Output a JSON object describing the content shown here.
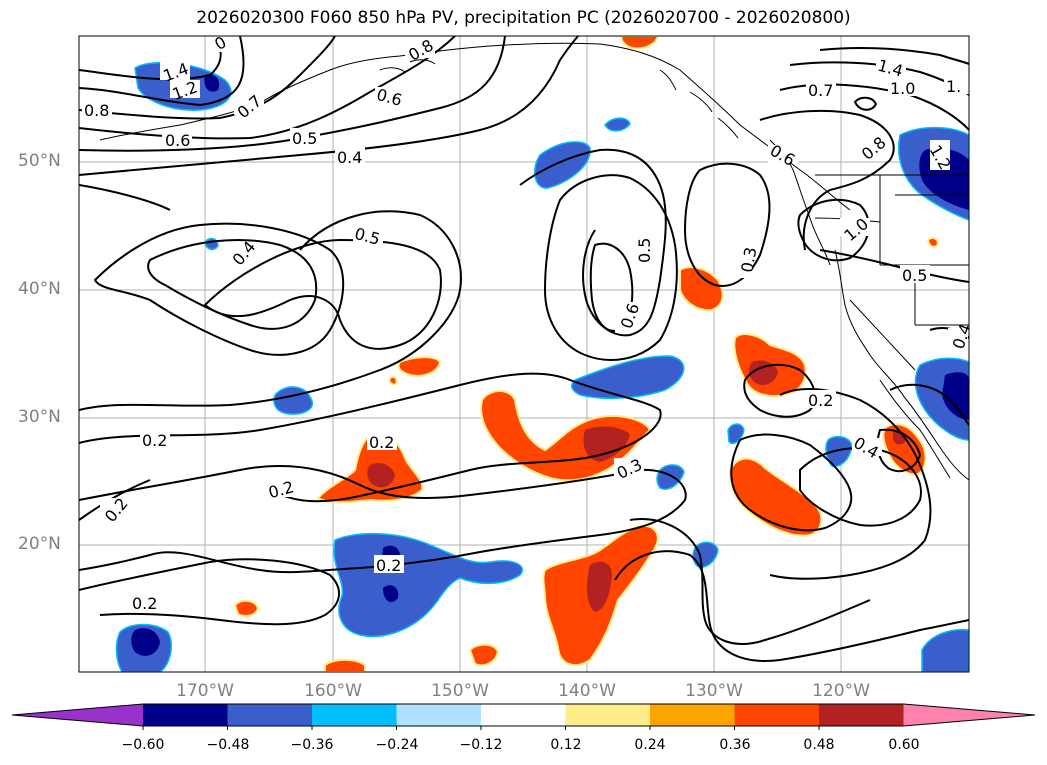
{
  "title": "2026020300 F060 850 hPa PV, precipitation PC (2026020700 - 2026020800)",
  "lat_labels": [
    "50°N",
    "40°N",
    "30°N",
    "20°N"
  ],
  "lon_labels": [
    "170°W",
    "160°W",
    "150°W",
    "140°W",
    "130°W",
    "120°W"
  ],
  "colorbar": {
    "ticks": [
      "−0.60",
      "−0.48",
      "−0.36",
      "−0.24",
      "−0.12",
      "0.12",
      "0.24",
      "0.36",
      "0.48",
      "0.60"
    ],
    "colors": [
      "#9932cc",
      "#00008b",
      "#3a5fcd",
      "#00bfff",
      "#b0e2ff",
      "#ffffff",
      "#ffec8b",
      "#ffa500",
      "#ff4500",
      "#b22222",
      "#ff82ab"
    ]
  },
  "contour_labels": {
    "l1": "1.4",
    "l2": "1.2",
    "l3": "0.8",
    "l4": "0.6",
    "l5": "0.7",
    "l6": "0.5",
    "l7": "0.4",
    "l8": "0.8",
    "l9": "0.6",
    "l10": "0.5",
    "l11": "0.4",
    "l12": "0.5",
    "l13": "0.6",
    "l14": "0.3",
    "l15": "0.6",
    "l16": "1.4",
    "l17": "1.0",
    "l18": "0.7",
    "l19": "1.",
    "l20": "0.8",
    "l21": "1.0",
    "l22": "0.5",
    "l23": "1.2",
    "l24": "0.2",
    "l25": "0.2",
    "l26": "0.2",
    "l27": "0.2",
    "l28": "0.3",
    "l29": "0.2",
    "l30": "0.2",
    "l31": "0.4",
    "l32": "0.2",
    "l33": "0.4",
    "l34": "0"
  }
}
